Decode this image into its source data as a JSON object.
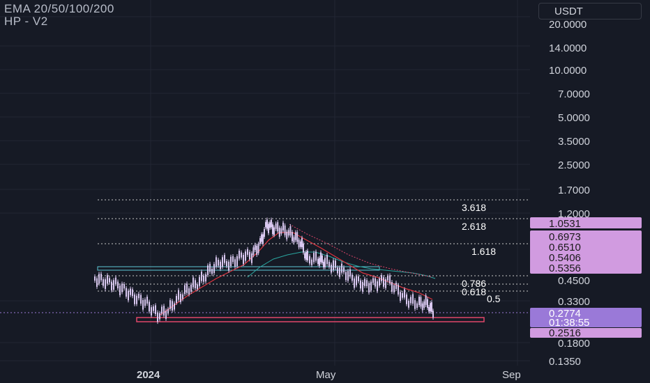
{
  "header": {
    "indicator_title": "EMA 20/50/100/200",
    "indicator_subtitle": "HP - V2",
    "currency_button": "USDT"
  },
  "colors": {
    "background": "#161a25",
    "grid": "#222633",
    "candle": "#d9c8f0",
    "ema_fast": "#e0343f",
    "ema_slow": "#2aa7a0",
    "badge": "#d19be0",
    "current_price_badge": "#9a79d8",
    "zone": "#e0466a"
  },
  "chart_data": {
    "type": "candlestick",
    "price_scale": "log",
    "y_ticks": [
      "20.0000",
      "14.0000",
      "10.0000",
      "7.0000",
      "5.0000",
      "3.5000",
      "2.5000",
      "1.7000",
      "1.2000",
      "0.4500",
      "0.3300",
      "0.1800",
      "0.1350"
    ],
    "x_ticks": [
      "2024",
      "May",
      "Sep"
    ],
    "fib_levels": [
      "3.618",
      "2.618",
      "1.618",
      "0.786",
      "0.618",
      "0.5"
    ],
    "price_badges": [
      "1.0531",
      "0.6973",
      "0.6510",
      "0.5406",
      "0.5356",
      "0.2516"
    ],
    "current_price": "0.2774",
    "countdown": "01:38:55"
  }
}
